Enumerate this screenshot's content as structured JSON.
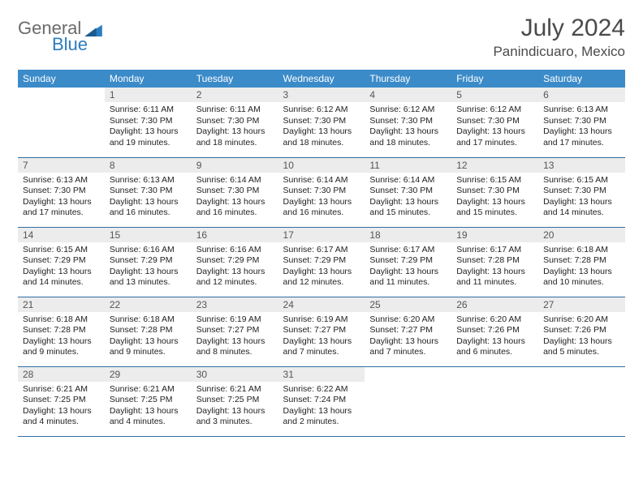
{
  "logo": {
    "general": "General",
    "blue": "Blue"
  },
  "title": "July 2024",
  "location": "Panindicuaro, Mexico",
  "colors": {
    "header_bg": "#3b8bc9",
    "header_text": "#ffffff",
    "daynum_bg": "#ececec",
    "row_divider": "#2f6ea3",
    "logo_grey": "#6b6b6b",
    "logo_blue": "#2b7cc0"
  },
  "weekdays": [
    "Sunday",
    "Monday",
    "Tuesday",
    "Wednesday",
    "Thursday",
    "Friday",
    "Saturday"
  ],
  "days": [
    {
      "n": "",
      "sunrise": "",
      "sunset": "",
      "daylight1": "",
      "daylight2": ""
    },
    {
      "n": "1",
      "sunrise": "Sunrise: 6:11 AM",
      "sunset": "Sunset: 7:30 PM",
      "daylight1": "Daylight: 13 hours",
      "daylight2": "and 19 minutes."
    },
    {
      "n": "2",
      "sunrise": "Sunrise: 6:11 AM",
      "sunset": "Sunset: 7:30 PM",
      "daylight1": "Daylight: 13 hours",
      "daylight2": "and 18 minutes."
    },
    {
      "n": "3",
      "sunrise": "Sunrise: 6:12 AM",
      "sunset": "Sunset: 7:30 PM",
      "daylight1": "Daylight: 13 hours",
      "daylight2": "and 18 minutes."
    },
    {
      "n": "4",
      "sunrise": "Sunrise: 6:12 AM",
      "sunset": "Sunset: 7:30 PM",
      "daylight1": "Daylight: 13 hours",
      "daylight2": "and 18 minutes."
    },
    {
      "n": "5",
      "sunrise": "Sunrise: 6:12 AM",
      "sunset": "Sunset: 7:30 PM",
      "daylight1": "Daylight: 13 hours",
      "daylight2": "and 17 minutes."
    },
    {
      "n": "6",
      "sunrise": "Sunrise: 6:13 AM",
      "sunset": "Sunset: 7:30 PM",
      "daylight1": "Daylight: 13 hours",
      "daylight2": "and 17 minutes."
    },
    {
      "n": "7",
      "sunrise": "Sunrise: 6:13 AM",
      "sunset": "Sunset: 7:30 PM",
      "daylight1": "Daylight: 13 hours",
      "daylight2": "and 17 minutes."
    },
    {
      "n": "8",
      "sunrise": "Sunrise: 6:13 AM",
      "sunset": "Sunset: 7:30 PM",
      "daylight1": "Daylight: 13 hours",
      "daylight2": "and 16 minutes."
    },
    {
      "n": "9",
      "sunrise": "Sunrise: 6:14 AM",
      "sunset": "Sunset: 7:30 PM",
      "daylight1": "Daylight: 13 hours",
      "daylight2": "and 16 minutes."
    },
    {
      "n": "10",
      "sunrise": "Sunrise: 6:14 AM",
      "sunset": "Sunset: 7:30 PM",
      "daylight1": "Daylight: 13 hours",
      "daylight2": "and 16 minutes."
    },
    {
      "n": "11",
      "sunrise": "Sunrise: 6:14 AM",
      "sunset": "Sunset: 7:30 PM",
      "daylight1": "Daylight: 13 hours",
      "daylight2": "and 15 minutes."
    },
    {
      "n": "12",
      "sunrise": "Sunrise: 6:15 AM",
      "sunset": "Sunset: 7:30 PM",
      "daylight1": "Daylight: 13 hours",
      "daylight2": "and 15 minutes."
    },
    {
      "n": "13",
      "sunrise": "Sunrise: 6:15 AM",
      "sunset": "Sunset: 7:30 PM",
      "daylight1": "Daylight: 13 hours",
      "daylight2": "and 14 minutes."
    },
    {
      "n": "14",
      "sunrise": "Sunrise: 6:15 AM",
      "sunset": "Sunset: 7:29 PM",
      "daylight1": "Daylight: 13 hours",
      "daylight2": "and 14 minutes."
    },
    {
      "n": "15",
      "sunrise": "Sunrise: 6:16 AM",
      "sunset": "Sunset: 7:29 PM",
      "daylight1": "Daylight: 13 hours",
      "daylight2": "and 13 minutes."
    },
    {
      "n": "16",
      "sunrise": "Sunrise: 6:16 AM",
      "sunset": "Sunset: 7:29 PM",
      "daylight1": "Daylight: 13 hours",
      "daylight2": "and 12 minutes."
    },
    {
      "n": "17",
      "sunrise": "Sunrise: 6:17 AM",
      "sunset": "Sunset: 7:29 PM",
      "daylight1": "Daylight: 13 hours",
      "daylight2": "and 12 minutes."
    },
    {
      "n": "18",
      "sunrise": "Sunrise: 6:17 AM",
      "sunset": "Sunset: 7:29 PM",
      "daylight1": "Daylight: 13 hours",
      "daylight2": "and 11 minutes."
    },
    {
      "n": "19",
      "sunrise": "Sunrise: 6:17 AM",
      "sunset": "Sunset: 7:28 PM",
      "daylight1": "Daylight: 13 hours",
      "daylight2": "and 11 minutes."
    },
    {
      "n": "20",
      "sunrise": "Sunrise: 6:18 AM",
      "sunset": "Sunset: 7:28 PM",
      "daylight1": "Daylight: 13 hours",
      "daylight2": "and 10 minutes."
    },
    {
      "n": "21",
      "sunrise": "Sunrise: 6:18 AM",
      "sunset": "Sunset: 7:28 PM",
      "daylight1": "Daylight: 13 hours",
      "daylight2": "and 9 minutes."
    },
    {
      "n": "22",
      "sunrise": "Sunrise: 6:18 AM",
      "sunset": "Sunset: 7:28 PM",
      "daylight1": "Daylight: 13 hours",
      "daylight2": "and 9 minutes."
    },
    {
      "n": "23",
      "sunrise": "Sunrise: 6:19 AM",
      "sunset": "Sunset: 7:27 PM",
      "daylight1": "Daylight: 13 hours",
      "daylight2": "and 8 minutes."
    },
    {
      "n": "24",
      "sunrise": "Sunrise: 6:19 AM",
      "sunset": "Sunset: 7:27 PM",
      "daylight1": "Daylight: 13 hours",
      "daylight2": "and 7 minutes."
    },
    {
      "n": "25",
      "sunrise": "Sunrise: 6:20 AM",
      "sunset": "Sunset: 7:27 PM",
      "daylight1": "Daylight: 13 hours",
      "daylight2": "and 7 minutes."
    },
    {
      "n": "26",
      "sunrise": "Sunrise: 6:20 AM",
      "sunset": "Sunset: 7:26 PM",
      "daylight1": "Daylight: 13 hours",
      "daylight2": "and 6 minutes."
    },
    {
      "n": "27",
      "sunrise": "Sunrise: 6:20 AM",
      "sunset": "Sunset: 7:26 PM",
      "daylight1": "Daylight: 13 hours",
      "daylight2": "and 5 minutes."
    },
    {
      "n": "28",
      "sunrise": "Sunrise: 6:21 AM",
      "sunset": "Sunset: 7:25 PM",
      "daylight1": "Daylight: 13 hours",
      "daylight2": "and 4 minutes."
    },
    {
      "n": "29",
      "sunrise": "Sunrise: 6:21 AM",
      "sunset": "Sunset: 7:25 PM",
      "daylight1": "Daylight: 13 hours",
      "daylight2": "and 4 minutes."
    },
    {
      "n": "30",
      "sunrise": "Sunrise: 6:21 AM",
      "sunset": "Sunset: 7:25 PM",
      "daylight1": "Daylight: 13 hours",
      "daylight2": "and 3 minutes."
    },
    {
      "n": "31",
      "sunrise": "Sunrise: 6:22 AM",
      "sunset": "Sunset: 7:24 PM",
      "daylight1": "Daylight: 13 hours",
      "daylight2": "and 2 minutes."
    },
    {
      "n": "",
      "sunrise": "",
      "sunset": "",
      "daylight1": "",
      "daylight2": ""
    },
    {
      "n": "",
      "sunrise": "",
      "sunset": "",
      "daylight1": "",
      "daylight2": ""
    },
    {
      "n": "",
      "sunrise": "",
      "sunset": "",
      "daylight1": "",
      "daylight2": ""
    }
  ]
}
